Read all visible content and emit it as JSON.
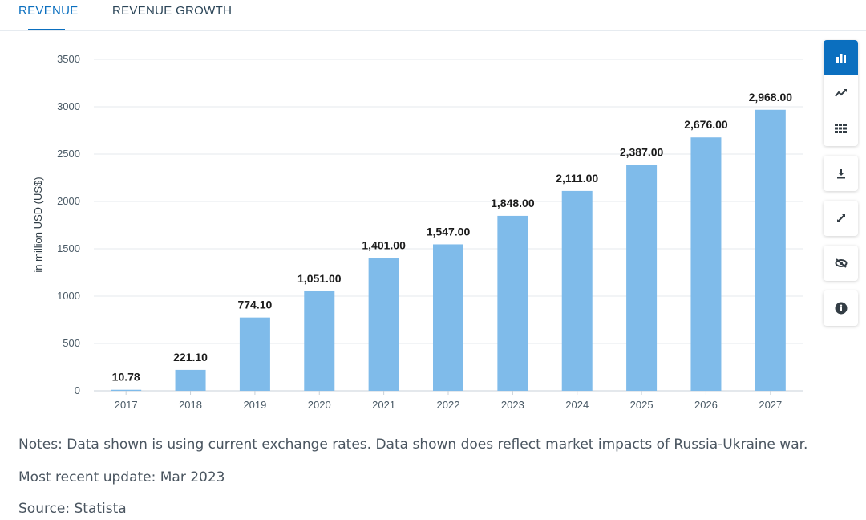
{
  "tabs": [
    {
      "label": "REVENUE",
      "active": true
    },
    {
      "label": "REVENUE GROWTH",
      "active": false
    }
  ],
  "toolbar": {
    "groups": [
      [
        "bar-chart-icon",
        "line-chart-icon",
        "table-icon"
      ],
      [
        "download-icon"
      ],
      [
        "fullscreen-icon"
      ],
      [
        "hide-icon"
      ],
      [
        "info-icon"
      ]
    ],
    "active_color": "#0b6fbf",
    "icon_color": "#333d45"
  },
  "notes": {
    "note": "Notes: Data shown is using current exchange rates. Data shown does reflect market impacts of Russia-Ukraine war.",
    "update": "Most recent update: Mar 2023",
    "source": "Source: Statista"
  },
  "chart_data": {
    "type": "bar",
    "categories": [
      "2017",
      "2018",
      "2019",
      "2020",
      "2021",
      "2022",
      "2023",
      "2024",
      "2025",
      "2026",
      "2027"
    ],
    "values": [
      10.78,
      221.1,
      774.1,
      1051,
      1401,
      1547,
      1848,
      2111,
      2387,
      2676,
      2968
    ],
    "value_labels": [
      "10.78",
      "221.10",
      "774.10",
      "1,051.00",
      "1,401.00",
      "1,547.00",
      "1,848.00",
      "2,111.00",
      "2,387.00",
      "2,676.00",
      "2,968.00"
    ],
    "ylabel": "in million USD (US$)",
    "ylim": [
      0,
      3500
    ],
    "yticks": [
      0,
      500,
      1000,
      1500,
      2000,
      2500,
      3000,
      3500
    ],
    "grid": true,
    "bar_color": "#7fbbea"
  }
}
